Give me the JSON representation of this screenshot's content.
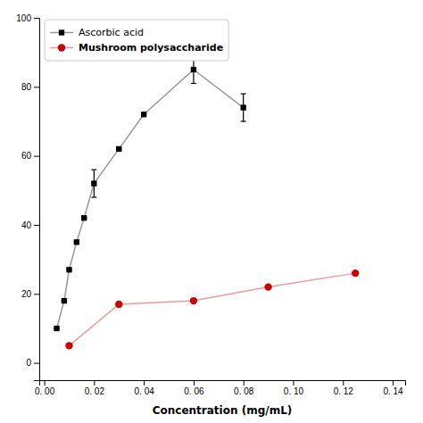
{
  "chart_data": {
    "type": "line",
    "x_label": "Concentration (mg/mL)",
    "series": [
      {
        "name": "Ascorbic acid",
        "color": "#000000",
        "marker": "square",
        "x": [
          0.005,
          0.008,
          0.01,
          0.013,
          0.016,
          0.02,
          0.03,
          0.04,
          0.06,
          0.08
        ],
        "values": [
          10,
          18,
          27,
          35,
          42,
          52,
          62,
          72,
          85,
          74
        ],
        "errors": [
          0,
          0,
          0,
          0,
          0,
          4,
          0,
          0,
          4,
          4
        ]
      },
      {
        "name": "Mushroom polysaccharide",
        "color": "#cc0000",
        "marker": "circle",
        "x": [
          0.01,
          0.03,
          0.06,
          0.09,
          0.125
        ],
        "values": [
          5,
          17,
          18,
          22,
          26
        ],
        "errors": [
          0,
          0,
          0,
          0,
          0
        ]
      }
    ],
    "xlim": [
      -0.002,
      0.145
    ],
    "ylim": [
      -5,
      100
    ],
    "xticks": [
      {
        "value": 0.0,
        "label": "0. 00"
      },
      {
        "value": 0.02,
        "label": "0. 02"
      },
      {
        "value": 0.04,
        "label": "0. 04"
      },
      {
        "value": 0.06,
        "label": "0. 06"
      },
      {
        "value": 0.08,
        "label": "0. 08"
      },
      {
        "value": 0.1,
        "label": "0. 10"
      },
      {
        "value": 0.12,
        "label": "0. 12"
      },
      {
        "value": 0.14,
        "label": "0. 14"
      }
    ],
    "yticks": [
      0,
      20,
      40,
      60,
      80,
      100
    ],
    "grid": false,
    "legend": "upper left"
  }
}
